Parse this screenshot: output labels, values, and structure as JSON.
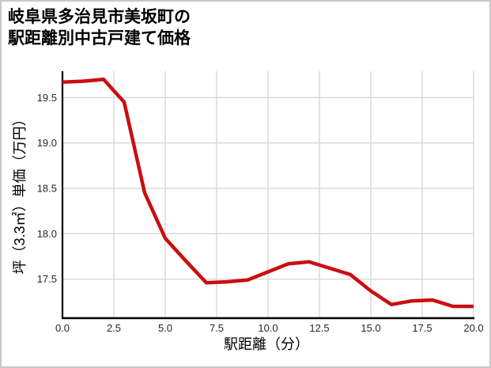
{
  "title": {
    "line1": "岐阜県多治見市美坂町の",
    "line2": "駅距離別中古戸建て価格"
  },
  "colors": {
    "line": "#cc0d10",
    "grid": "#d9d9d9",
    "axis": "#000000",
    "tick_text": "#262626",
    "page_border": "#c9c9c9",
    "background": "#ffffff"
  },
  "chart_data": {
    "type": "line",
    "title": "岐阜県多治見市美坂町の駅距離別中古戸建て価格",
    "xlabel": "駅距離（分）",
    "ylabel": "坪（3.3㎡）単価（万円）",
    "x": [
      0,
      1,
      2,
      3,
      4,
      5,
      6,
      7,
      8,
      9,
      10,
      11,
      12,
      13,
      14,
      15,
      16,
      17,
      18,
      19,
      20
    ],
    "values": [
      19.67,
      19.68,
      19.7,
      19.45,
      18.45,
      17.95,
      17.7,
      17.46,
      17.47,
      17.49,
      17.58,
      17.67,
      17.69,
      17.62,
      17.55,
      17.37,
      17.22,
      17.26,
      17.27,
      17.2,
      17.2
    ],
    "xlim": [
      0,
      20
    ],
    "ylim": [
      17.07,
      19.79
    ],
    "x_tick_values": [
      0,
      2.5,
      5,
      7.5,
      10,
      12.5,
      15,
      17.5,
      20
    ],
    "x_tick_labels": [
      "0.0",
      "2.5",
      "5.0",
      "7.5",
      "10.0",
      "12.5",
      "15.0",
      "17.5",
      "20.0"
    ],
    "y_tick_values": [
      17.5,
      18,
      18.5,
      19,
      19.5
    ],
    "y_tick_labels": [
      "17.5",
      "18.0",
      "18.5",
      "19.0",
      "19.5"
    ],
    "grid": true,
    "legend": false,
    "line_width": 4.5
  }
}
